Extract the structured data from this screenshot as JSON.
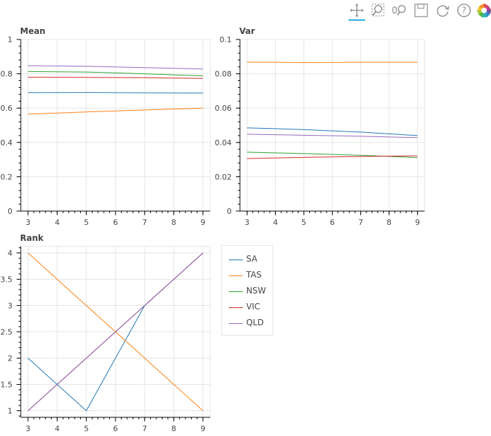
{
  "toolbar": {
    "tools": [
      {
        "name": "pan-tool",
        "icon": "pan-icon",
        "active": true
      },
      {
        "name": "box-zoom-tool",
        "icon": "box-zoom-icon",
        "active": false
      },
      {
        "name": "wheel-zoom-tool",
        "icon": "wheel-zoom-icon",
        "active": false
      },
      {
        "name": "save-tool",
        "icon": "save-icon",
        "active": false
      },
      {
        "name": "reset-tool",
        "icon": "reset-icon",
        "active": false
      },
      {
        "name": "help-tool",
        "icon": "help-icon",
        "active": false
      },
      {
        "name": "bokeh-logo",
        "icon": "bokeh-logo-icon",
        "active": false
      }
    ],
    "accent": "#26aae1"
  },
  "legend": [
    {
      "name": "SA",
      "color": "#1f77b4"
    },
    {
      "name": "TAS",
      "color": "#ff7f0e"
    },
    {
      "name": "NSW",
      "color": "#2ca02c"
    },
    {
      "name": "VIC",
      "color": "#d62728"
    },
    {
      "name": "QLD",
      "color": "#9467bd"
    }
  ],
  "chart_data": [
    {
      "type": "line",
      "title": "Mean",
      "xlim": [
        2.75,
        9.25
      ],
      "ylim": [
        0,
        1
      ],
      "xticks": [
        "3",
        "4",
        "5",
        "6",
        "7",
        "8",
        "9"
      ],
      "yticks": [
        "0",
        "0.2",
        "0.4",
        "0.6",
        "0.8",
        "1"
      ],
      "x": [
        3,
        5,
        7,
        9
      ],
      "grid": true,
      "series": [
        {
          "name": "SA",
          "values": [
            0.69,
            0.691,
            0.689,
            0.688
          ]
        },
        {
          "name": "TAS",
          "values": [
            0.565,
            0.578,
            0.589,
            0.6
          ]
        },
        {
          "name": "NSW",
          "values": [
            0.813,
            0.81,
            0.8,
            0.788
          ]
        },
        {
          "name": "VIC",
          "values": [
            0.78,
            0.779,
            0.777,
            0.773
          ]
        },
        {
          "name": "QLD",
          "values": [
            0.847,
            0.844,
            0.836,
            0.828
          ]
        }
      ]
    },
    {
      "type": "line",
      "title": "Var",
      "xlim": [
        2.75,
        9.25
      ],
      "ylim": [
        0,
        0.1
      ],
      "xticks": [
        "3",
        "4",
        "5",
        "6",
        "7",
        "8",
        "9"
      ],
      "yticks": [
        "0",
        "0.02",
        "0.04",
        "0.06",
        "0.08",
        "0.1"
      ],
      "x": [
        3,
        5,
        7,
        9
      ],
      "grid": true,
      "series": [
        {
          "name": "SA",
          "values": [
            0.0485,
            0.0475,
            0.046,
            0.044
          ]
        },
        {
          "name": "TAS",
          "values": [
            0.0868,
            0.0865,
            0.0867,
            0.0867
          ]
        },
        {
          "name": "NSW",
          "values": [
            0.0343,
            0.0335,
            0.0325,
            0.0312
          ]
        },
        {
          "name": "VIC",
          "values": [
            0.0306,
            0.0313,
            0.0318,
            0.0322
          ]
        },
        {
          "name": "QLD",
          "values": [
            0.0448,
            0.0442,
            0.0436,
            0.0428
          ]
        }
      ]
    },
    {
      "type": "line",
      "title": "Rank",
      "xlim": [
        2.75,
        9.25
      ],
      "ylim": [
        0.875,
        4.125
      ],
      "xticks": [
        "3",
        "4",
        "5",
        "6",
        "7",
        "8",
        "9"
      ],
      "yticks": [
        "1",
        "1.5",
        "2",
        "2.5",
        "3",
        "3.5",
        "4"
      ],
      "x": [
        3,
        5,
        7,
        9
      ],
      "grid": true,
      "series": [
        {
          "name": "SA",
          "values": [
            2,
            1,
            3,
            4
          ]
        },
        {
          "name": "TAS",
          "values": [
            4,
            3,
            2,
            1
          ]
        },
        {
          "name": "NSW",
          "values": [
            1,
            2,
            3,
            4
          ]
        },
        {
          "name": "VIC",
          "values": [
            1,
            2,
            3,
            4
          ]
        },
        {
          "name": "QLD",
          "values": [
            1,
            2,
            3,
            4
          ]
        }
      ]
    }
  ]
}
